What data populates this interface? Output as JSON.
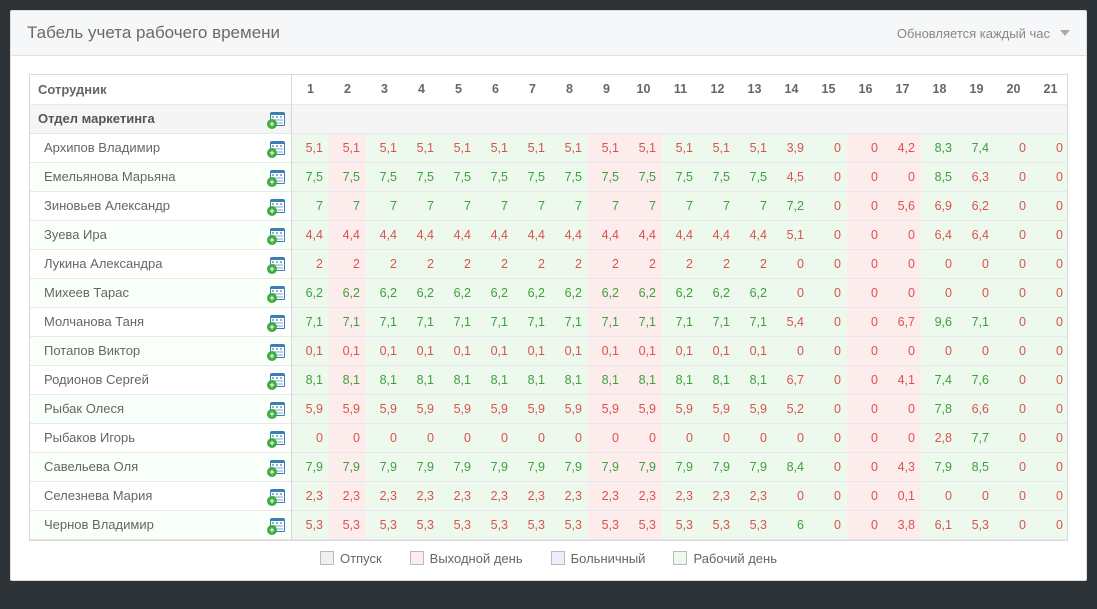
{
  "title": "Табель учета рабочего времени",
  "update_text": "Обновляется каждый час",
  "colors": {
    "red": "#d9534f",
    "green": "#3fa03f",
    "cell_vacation": "#f0f0f0",
    "cell_dayoff": "#fdecec",
    "cell_sick": "#eceffb",
    "cell_workday": "#ecf9ec"
  },
  "legend": [
    {
      "label": "Отпуск",
      "color": "#f0f0f0"
    },
    {
      "label": "Выходной день",
      "color": "#fdecec"
    },
    {
      "label": "Больничный",
      "color": "#eceffb"
    },
    {
      "label": "Рабочий день",
      "color": "#ecf9ec"
    }
  ],
  "header_employee": "Сотрудник",
  "days": [
    1,
    2,
    3,
    4,
    5,
    6,
    7,
    8,
    9,
    10,
    11,
    12,
    13,
    14,
    15,
    16,
    17,
    18,
    19,
    20,
    21
  ],
  "group_name": "Отдел маркетинга",
  "day_bg_pattern": [
    "w",
    "d",
    "w",
    "w",
    "w",
    "w",
    "w",
    "w",
    "d",
    "d",
    "w",
    "w",
    "w",
    "w",
    "w",
    "d",
    "d",
    "w",
    "w",
    "w",
    "w"
  ],
  "employees": [
    {
      "name": "Архипов Владимир",
      "vals": [
        "5,1",
        "5,1",
        "5,1",
        "5,1",
        "5,1",
        "5,1",
        "5,1",
        "5,1",
        "5,1",
        "5,1",
        "5,1",
        "5,1",
        "5,1",
        "3,9",
        "0",
        "0",
        "4,2",
        "8,3",
        "7,4",
        "0",
        "0"
      ],
      "col": [
        "r",
        "r",
        "r",
        "r",
        "r",
        "r",
        "r",
        "r",
        "r",
        "r",
        "r",
        "r",
        "r",
        "r",
        "r",
        "r",
        "r",
        "g",
        "g",
        "r",
        "r"
      ]
    },
    {
      "name": "Емельянова Марьяна",
      "vals": [
        "7,5",
        "7,5",
        "7,5",
        "7,5",
        "7,5",
        "7,5",
        "7,5",
        "7,5",
        "7,5",
        "7,5",
        "7,5",
        "7,5",
        "7,5",
        "4,5",
        "0",
        "0",
        "0",
        "8,5",
        "6,3",
        "0",
        "0"
      ],
      "col": [
        "g",
        "g",
        "g",
        "g",
        "g",
        "g",
        "g",
        "g",
        "g",
        "g",
        "g",
        "g",
        "g",
        "r",
        "r",
        "r",
        "r",
        "g",
        "r",
        "r",
        "r"
      ]
    },
    {
      "name": "Зиновьев Александр",
      "vals": [
        "7",
        "7",
        "7",
        "7",
        "7",
        "7",
        "7",
        "7",
        "7",
        "7",
        "7",
        "7",
        "7",
        "7,2",
        "0",
        "0",
        "5,6",
        "6,9",
        "6,2",
        "0",
        "0"
      ],
      "col": [
        "g",
        "g",
        "g",
        "g",
        "g",
        "g",
        "g",
        "g",
        "g",
        "g",
        "g",
        "g",
        "g",
        "g",
        "r",
        "r",
        "r",
        "r",
        "r",
        "r",
        "r"
      ]
    },
    {
      "name": "Зуева Ира",
      "vals": [
        "4,4",
        "4,4",
        "4,4",
        "4,4",
        "4,4",
        "4,4",
        "4,4",
        "4,4",
        "4,4",
        "4,4",
        "4,4",
        "4,4",
        "4,4",
        "5,1",
        "0",
        "0",
        "0",
        "6,4",
        "6,4",
        "0",
        "0"
      ],
      "col": [
        "r",
        "r",
        "r",
        "r",
        "r",
        "r",
        "r",
        "r",
        "r",
        "r",
        "r",
        "r",
        "r",
        "r",
        "r",
        "r",
        "r",
        "r",
        "r",
        "r",
        "r"
      ]
    },
    {
      "name": "Лукина Александра",
      "vals": [
        "2",
        "2",
        "2",
        "2",
        "2",
        "2",
        "2",
        "2",
        "2",
        "2",
        "2",
        "2",
        "2",
        "0",
        "0",
        "0",
        "0",
        "0",
        "0",
        "0",
        "0"
      ],
      "col": [
        "r",
        "r",
        "r",
        "r",
        "r",
        "r",
        "r",
        "r",
        "r",
        "r",
        "r",
        "r",
        "r",
        "r",
        "r",
        "r",
        "r",
        "r",
        "r",
        "r",
        "r"
      ]
    },
    {
      "name": "Михеев Тарас",
      "vals": [
        "6,2",
        "6,2",
        "6,2",
        "6,2",
        "6,2",
        "6,2",
        "6,2",
        "6,2",
        "6,2",
        "6,2",
        "6,2",
        "6,2",
        "6,2",
        "0",
        "0",
        "0",
        "0",
        "0",
        "0",
        "0",
        "0"
      ],
      "col": [
        "g",
        "g",
        "g",
        "g",
        "g",
        "g",
        "g",
        "g",
        "g",
        "g",
        "g",
        "g",
        "g",
        "r",
        "r",
        "r",
        "r",
        "r",
        "r",
        "r",
        "r"
      ]
    },
    {
      "name": "Молчанова Таня",
      "vals": [
        "7,1",
        "7,1",
        "7,1",
        "7,1",
        "7,1",
        "7,1",
        "7,1",
        "7,1",
        "7,1",
        "7,1",
        "7,1",
        "7,1",
        "7,1",
        "5,4",
        "0",
        "0",
        "6,7",
        "9,6",
        "7,1",
        "0",
        "0"
      ],
      "col": [
        "g",
        "g",
        "g",
        "g",
        "g",
        "g",
        "g",
        "g",
        "g",
        "g",
        "g",
        "g",
        "g",
        "r",
        "r",
        "r",
        "r",
        "g",
        "g",
        "r",
        "r"
      ]
    },
    {
      "name": "Потапов Виктор",
      "vals": [
        "0,1",
        "0,1",
        "0,1",
        "0,1",
        "0,1",
        "0,1",
        "0,1",
        "0,1",
        "0,1",
        "0,1",
        "0,1",
        "0,1",
        "0,1",
        "0",
        "0",
        "0",
        "0",
        "0",
        "0",
        "0",
        "0"
      ],
      "col": [
        "r",
        "r",
        "r",
        "r",
        "r",
        "r",
        "r",
        "r",
        "r",
        "r",
        "r",
        "r",
        "r",
        "r",
        "r",
        "r",
        "r",
        "r",
        "r",
        "r",
        "r"
      ]
    },
    {
      "name": "Родионов Сергей",
      "vals": [
        "8,1",
        "8,1",
        "8,1",
        "8,1",
        "8,1",
        "8,1",
        "8,1",
        "8,1",
        "8,1",
        "8,1",
        "8,1",
        "8,1",
        "8,1",
        "6,7",
        "0",
        "0",
        "4,1",
        "7,4",
        "7,6",
        "0",
        "0"
      ],
      "col": [
        "g",
        "g",
        "g",
        "g",
        "g",
        "g",
        "g",
        "g",
        "g",
        "g",
        "g",
        "g",
        "g",
        "r",
        "r",
        "r",
        "r",
        "g",
        "g",
        "r",
        "r"
      ]
    },
    {
      "name": "Рыбак Олеся",
      "vals": [
        "5,9",
        "5,9",
        "5,9",
        "5,9",
        "5,9",
        "5,9",
        "5,9",
        "5,9",
        "5,9",
        "5,9",
        "5,9",
        "5,9",
        "5,9",
        "5,2",
        "0",
        "0",
        "0",
        "7,8",
        "6,6",
        "0",
        "0"
      ],
      "col": [
        "r",
        "r",
        "r",
        "r",
        "r",
        "r",
        "r",
        "r",
        "r",
        "r",
        "r",
        "r",
        "r",
        "r",
        "r",
        "r",
        "r",
        "g",
        "r",
        "r",
        "r"
      ]
    },
    {
      "name": "Рыбаков Игорь",
      "vals": [
        "0",
        "0",
        "0",
        "0",
        "0",
        "0",
        "0",
        "0",
        "0",
        "0",
        "0",
        "0",
        "0",
        "0",
        "0",
        "0",
        "0",
        "2,8",
        "7,7",
        "0",
        "0"
      ],
      "col": [
        "r",
        "r",
        "r",
        "r",
        "r",
        "r",
        "r",
        "r",
        "r",
        "r",
        "r",
        "r",
        "r",
        "r",
        "r",
        "r",
        "r",
        "r",
        "g",
        "r",
        "r"
      ]
    },
    {
      "name": "Савельева Оля",
      "vals": [
        "7,9",
        "7,9",
        "7,9",
        "7,9",
        "7,9",
        "7,9",
        "7,9",
        "7,9",
        "7,9",
        "7,9",
        "7,9",
        "7,9",
        "7,9",
        "8,4",
        "0",
        "0",
        "4,3",
        "7,9",
        "8,5",
        "0",
        "0"
      ],
      "col": [
        "g",
        "g",
        "g",
        "g",
        "g",
        "g",
        "g",
        "g",
        "g",
        "g",
        "g",
        "g",
        "g",
        "g",
        "r",
        "r",
        "r",
        "g",
        "g",
        "r",
        "r"
      ]
    },
    {
      "name": "Селезнева Мария",
      "vals": [
        "2,3",
        "2,3",
        "2,3",
        "2,3",
        "2,3",
        "2,3",
        "2,3",
        "2,3",
        "2,3",
        "2,3",
        "2,3",
        "2,3",
        "2,3",
        "0",
        "0",
        "0",
        "0,1",
        "0",
        "0",
        "0",
        "0"
      ],
      "col": [
        "r",
        "r",
        "r",
        "r",
        "r",
        "r",
        "r",
        "r",
        "r",
        "r",
        "r",
        "r",
        "r",
        "r",
        "r",
        "r",
        "r",
        "r",
        "r",
        "r",
        "r"
      ]
    },
    {
      "name": "Чернов Владимир",
      "vals": [
        "5,3",
        "5,3",
        "5,3",
        "5,3",
        "5,3",
        "5,3",
        "5,3",
        "5,3",
        "5,3",
        "5,3",
        "5,3",
        "5,3",
        "5,3",
        "6",
        "0",
        "0",
        "3,8",
        "6,1",
        "5,3",
        "0",
        "0"
      ],
      "col": [
        "r",
        "r",
        "r",
        "r",
        "r",
        "r",
        "r",
        "r",
        "r",
        "r",
        "r",
        "r",
        "r",
        "g",
        "r",
        "r",
        "r",
        "r",
        "r",
        "r",
        "r"
      ]
    }
  ]
}
